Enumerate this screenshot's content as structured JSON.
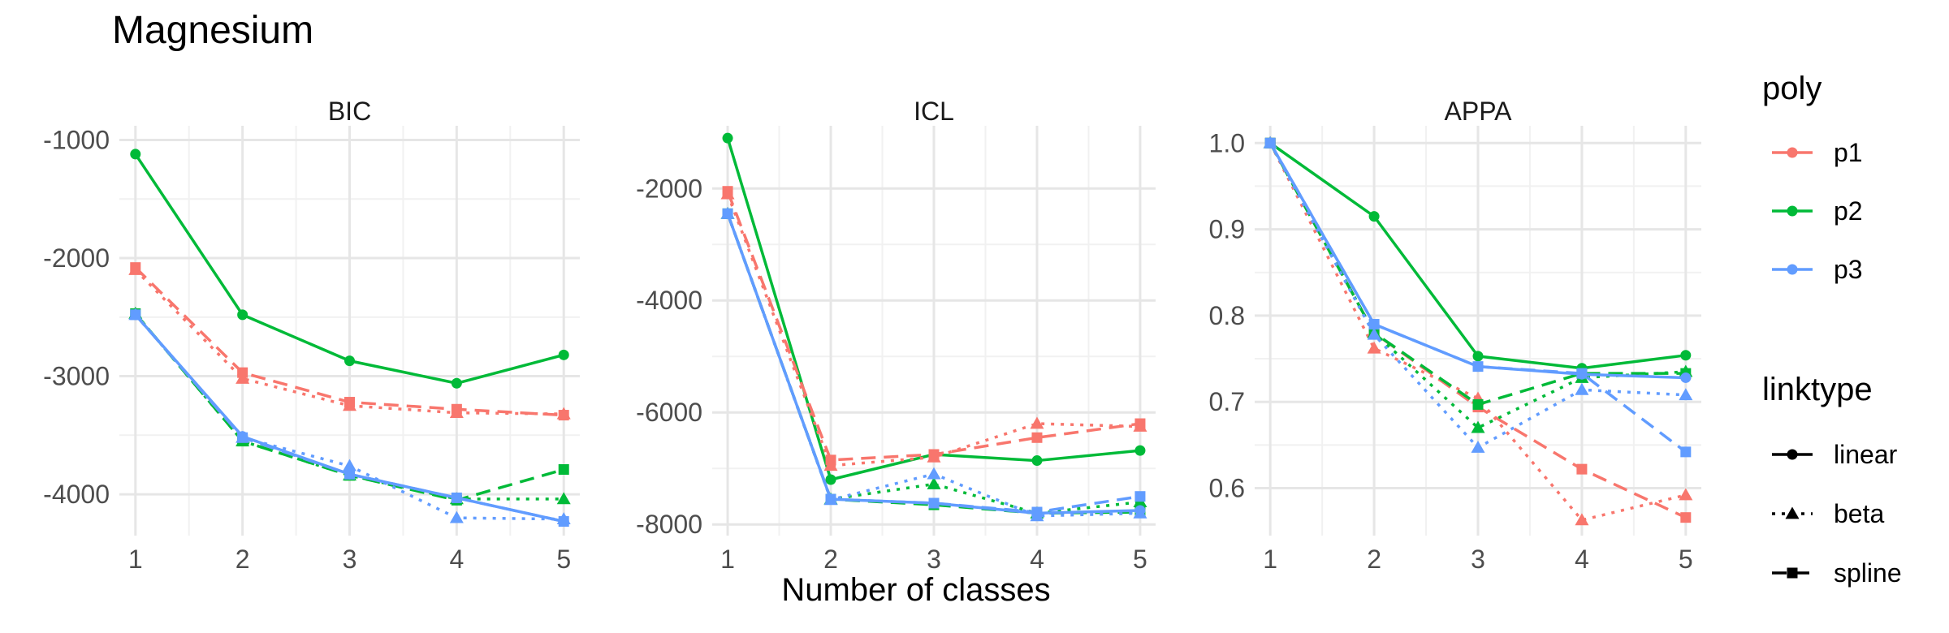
{
  "chart_data": {
    "type": "line",
    "title": "Magnesium",
    "xlabel": "Number of classes",
    "x": [
      1,
      2,
      3,
      4,
      5
    ],
    "grid": true,
    "legend_position": "right",
    "legends": {
      "poly": {
        "title": "poly",
        "items": [
          {
            "label": "p1",
            "color": "#F8766D"
          },
          {
            "label": "p2",
            "color": "#00BA38"
          },
          {
            "label": "p3",
            "color": "#619CFF"
          }
        ]
      },
      "linktype": {
        "title": "linktype",
        "items": [
          {
            "label": "linear",
            "linestyle": "solid",
            "marker": "circle"
          },
          {
            "label": "beta",
            "linestyle": "dotted",
            "marker": "triangle"
          },
          {
            "label": "spline",
            "linestyle": "dashed",
            "marker": "square"
          }
        ]
      }
    },
    "panels": [
      {
        "name": "BIC",
        "ylim": [
          -4350,
          -880
        ],
        "yticks": [
          -1000,
          -2000,
          -3000,
          -4000
        ],
        "ytick_labels": [
          "-1000",
          "-2000",
          "-3000",
          "-4000"
        ],
        "series": [
          {
            "poly": "p2",
            "linktype": "linear",
            "values": [
              -1120,
              -2480,
              -2870,
              -3060,
              -2820
            ]
          },
          {
            "poly": "p1",
            "linktype": "beta",
            "values": [
              -2100,
              -3020,
              -3250,
              -3310,
              -3320
            ]
          },
          {
            "poly": "p1",
            "linktype": "spline",
            "values": [
              -2080,
              -2970,
              -3220,
              -3280,
              -3330
            ]
          },
          {
            "poly": "p2",
            "linktype": "beta",
            "values": [
              -2470,
              -3550,
              -3840,
              -4040,
              -4040
            ]
          },
          {
            "poly": "p2",
            "linktype": "spline",
            "values": [
              -2470,
              -3550,
              -3840,
              -4050,
              -3790
            ]
          },
          {
            "poly": "p3",
            "linktype": "linear",
            "values": [
              -2480,
              -3510,
              -3830,
              -4030,
              -4230
            ]
          },
          {
            "poly": "p3",
            "linktype": "beta",
            "values": [
              -2480,
              -3520,
              -3760,
              -4200,
              -4210
            ]
          },
          {
            "poly": "p3",
            "linktype": "spline",
            "values": [
              -2480,
              -3520,
              -3830,
              -4030,
              -4230
            ]
          }
        ]
      },
      {
        "name": "ICL",
        "ylim": [
          -8200,
          -880
        ],
        "yticks": [
          -2000,
          -4000,
          -6000,
          -8000
        ],
        "ytick_labels": [
          "-2000",
          "-4000",
          "-6000",
          "-8000"
        ],
        "series": [
          {
            "poly": "p2",
            "linktype": "linear",
            "values": [
              -1100,
              -7200,
              -6750,
              -6860,
              -6680
            ]
          },
          {
            "poly": "p1",
            "linktype": "beta",
            "values": [
              -2100,
              -6950,
              -6800,
              -6200,
              -6250
            ]
          },
          {
            "poly": "p1",
            "linktype": "spline",
            "values": [
              -2050,
              -6850,
              -6750,
              -6450,
              -6200
            ]
          },
          {
            "poly": "p2",
            "linktype": "beta",
            "values": [
              -2450,
              -7550,
              -7280,
              -7800,
              -7600
            ]
          },
          {
            "poly": "p2",
            "linktype": "spline",
            "values": [
              -2450,
              -7550,
              -7650,
              -7800,
              -7780
            ]
          },
          {
            "poly": "p3",
            "linktype": "linear",
            "values": [
              -2450,
              -7550,
              -7620,
              -7800,
              -7750
            ]
          },
          {
            "poly": "p3",
            "linktype": "beta",
            "values": [
              -2450,
              -7560,
              -7100,
              -7850,
              -7800
            ]
          },
          {
            "poly": "p3",
            "linktype": "spline",
            "values": [
              -2450,
              -7550,
              -7620,
              -7780,
              -7500
            ]
          }
        ]
      },
      {
        "name": "APPA",
        "ylim": [
          0.545,
          1.02
        ],
        "yticks": [
          1.0,
          0.9,
          0.8,
          0.7,
          0.6
        ],
        "ytick_labels": [
          "1.0",
          "0.9",
          "0.8",
          "0.7",
          "0.6"
        ],
        "series": [
          {
            "poly": "p2",
            "linktype": "linear",
            "values": [
              1.0,
              0.915,
              0.753,
              0.739,
              0.754
            ]
          },
          {
            "poly": "p1",
            "linktype": "beta",
            "values": [
              1.0,
              0.762,
              0.704,
              0.563,
              0.592
            ]
          },
          {
            "poly": "p1",
            "linktype": "spline",
            "values": [
              1.0,
              0.78,
              0.694,
              0.622,
              0.566
            ]
          },
          {
            "poly": "p2",
            "linktype": "beta",
            "values": [
              1.0,
              0.78,
              0.67,
              0.728,
              0.735
            ]
          },
          {
            "poly": "p2",
            "linktype": "spline",
            "values": [
              1.0,
              0.78,
              0.697,
              0.733,
              0.733
            ]
          },
          {
            "poly": "p3",
            "linktype": "linear",
            "values": [
              1.0,
              0.79,
              0.741,
              0.732,
              0.728
            ]
          },
          {
            "poly": "p3",
            "linktype": "beta",
            "values": [
              1.0,
              0.778,
              0.647,
              0.714,
              0.708
            ]
          },
          {
            "poly": "p3",
            "linktype": "spline",
            "values": [
              1.0,
              0.79,
              0.741,
              0.733,
              0.642
            ]
          }
        ]
      }
    ]
  }
}
